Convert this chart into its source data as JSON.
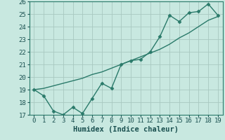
{
  "xlabel": "Humidex (Indice chaleur)",
  "x": [
    0,
    1,
    2,
    3,
    4,
    5,
    6,
    7,
    8,
    9,
    10,
    11,
    12,
    13,
    14,
    15,
    16,
    17,
    18,
    19
  ],
  "line1_y": [
    19.0,
    18.5,
    17.3,
    17.0,
    17.6,
    17.1,
    18.3,
    19.5,
    19.1,
    21.0,
    21.3,
    21.4,
    22.0,
    23.2,
    24.9,
    24.4,
    25.1,
    25.2,
    25.8,
    24.9
  ],
  "line2_y": [
    19.0,
    19.1,
    19.3,
    19.5,
    19.7,
    19.9,
    20.2,
    20.4,
    20.7,
    21.0,
    21.3,
    21.6,
    21.9,
    22.2,
    22.6,
    23.1,
    23.5,
    24.0,
    24.5,
    24.8
  ],
  "line_color": "#2a7a6a",
  "bg_color": "#c8e8e0",
  "grid_color": "#a8c8c0",
  "ylim_min": 17,
  "ylim_max": 26,
  "xlim_min": 0,
  "xlim_max": 19,
  "yticks": [
    17,
    18,
    19,
    20,
    21,
    22,
    23,
    24,
    25,
    26
  ],
  "xticks": [
    0,
    1,
    2,
    3,
    4,
    5,
    6,
    7,
    8,
    9,
    10,
    11,
    12,
    13,
    14,
    15,
    16,
    17,
    18,
    19
  ],
  "marker": "D",
  "markersize": 2.5,
  "linewidth": 1.0,
  "xlabel_fontsize": 7.5,
  "tick_fontsize": 6.5,
  "text_color": "#1a5050"
}
